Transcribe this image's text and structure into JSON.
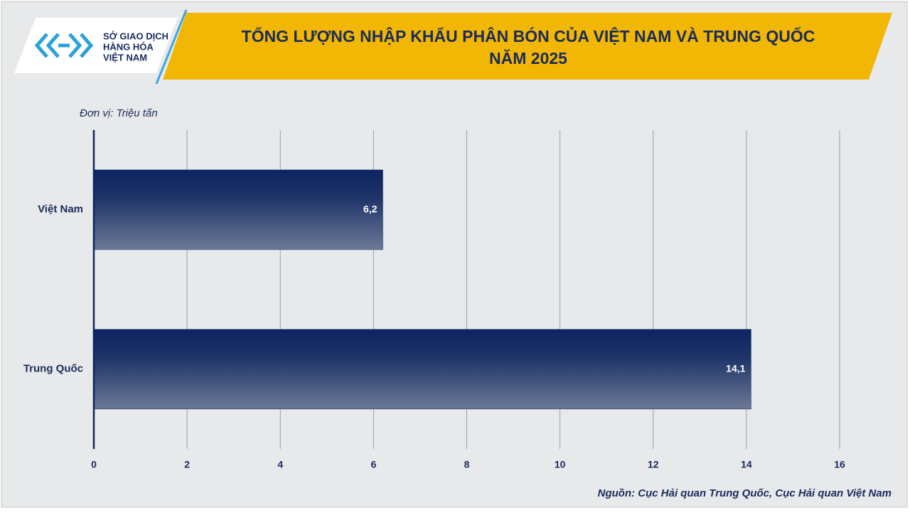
{
  "logo": {
    "lines": [
      "SỞ GIAO DỊCH",
      "HÀNG HÓA",
      "VIỆT NAM"
    ]
  },
  "chart_data": {
    "type": "bar",
    "orientation": "horizontal",
    "title": [
      "TỔNG LƯỢNG NHẬP KHẨU PHÂN BÓN CỦA VIỆT NAM VÀ TRUNG QUỐC",
      "NĂM 2025"
    ],
    "unit_label": "Đơn vị: Triệu tấn",
    "categories": [
      "Việt Nam",
      "Trung Quốc"
    ],
    "values": [
      6.2,
      14.1
    ],
    "value_labels": [
      "6,2",
      "14,1"
    ],
    "color": "#0c2461",
    "xlim": [
      0,
      16
    ],
    "xticks": [
      0,
      2,
      4,
      6,
      8,
      10,
      12,
      14,
      16
    ],
    "grid": true,
    "source": "Nguồn: Cục Hải quan Trung Quốc, Cục Hải quan Việt Nam"
  }
}
